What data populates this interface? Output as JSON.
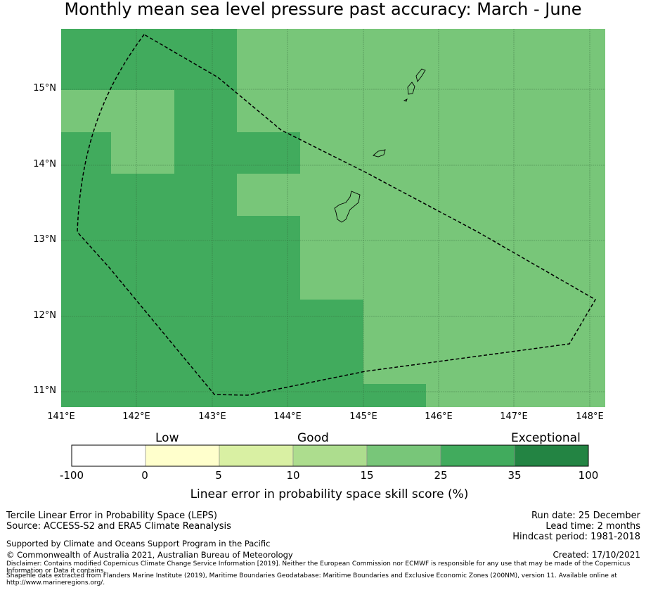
{
  "title": "Monthly mean sea level pressure past accuracy: March - June",
  "map": {
    "lat_labels": [
      "15°N",
      "14°N",
      "13°N",
      "12°N",
      "11°N"
    ],
    "lon_labels": [
      "141°E",
      "142°E",
      "143°E",
      "144°E",
      "145°E",
      "146°E",
      "147°E",
      "148°E"
    ],
    "colors": {
      "skill_15_25": "#78c679",
      "skill_25_35": "#41ab5d",
      "gridline": "#2e5e33",
      "outline": "#000000"
    }
  },
  "colorbar": {
    "categories": {
      "low": "Low",
      "good": "Good",
      "exceptional": "Exceptional"
    },
    "ticks": [
      "-100",
      "0",
      "5",
      "10",
      "15",
      "25",
      "35",
      "100"
    ],
    "colors": [
      "#ffffff",
      "#ffffcc",
      "#d9f0a3",
      "#addd8e",
      "#78c679",
      "#41ab5d",
      "#238443"
    ],
    "label": "Linear error in probability space skill score (%)"
  },
  "footer": {
    "method": "Tercile Linear Error in Probability Space (LEPS)",
    "source": "Source: ACCESS-S2 and ERA5 Climate Reanalysis",
    "supported": "Supported by Climate and Oceans Support Program in the Pacific",
    "copyright": "© Commonwealth of Australia 2021, Australian Bureau of Meteorology",
    "disclaimer": "Disclaimer: Contains modified Copernicus Climate Change Service Information [2019]. Neither the European Commission nor ECMWF is responsible for any use that may be made of the Copernicus Information or Data it contains.",
    "shapefile": "Shapefile data extracted from Flanders Marine Institute (2019), Maritime Boundaries Geodatabase: Maritime Boundaries and Exclusive Economic Zones (200NM), version 11. Available online at http://www.marineregions.org/.",
    "run_date": "Run date: 25 December",
    "lead_time": "Lead time: 2 months",
    "hindcast": "Hindcast period: 1981-2018",
    "created": "Created: 17/10/2021"
  }
}
